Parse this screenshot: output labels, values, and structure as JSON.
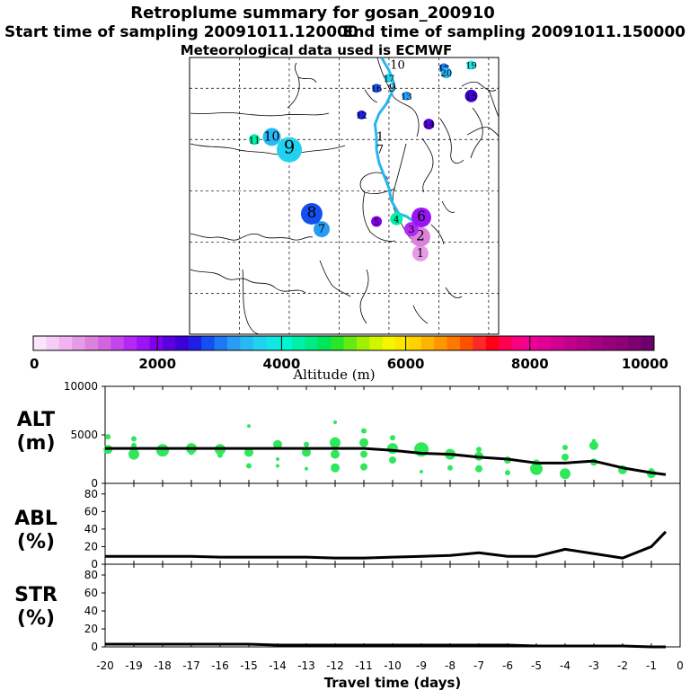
{
  "header": {
    "title": "Retroplume summary for gosan_200910",
    "start": "Start time of sampling 20091011.120000",
    "end": "End time of sampling 20091011.150000",
    "met": "Meteorological data used is ECMWF"
  },
  "colorbar": {
    "colors": [
      "#fae6fa",
      "#f5cdf5",
      "#f0b4f0",
      "#e69be6",
      "#dc82dc",
      "#d264e1",
      "#c346eb",
      "#b428f5",
      "#9b14f5",
      "#8200f0",
      "#5a00e1",
      "#3c00d7",
      "#1e1ee6",
      "#1450f0",
      "#1e78f5",
      "#289bf5",
      "#28b9f5",
      "#1ed2f0",
      "#14e6e6",
      "#00f5d2",
      "#00f0aa",
      "#00eb82",
      "#00e65a",
      "#28e628",
      "#64eb14",
      "#a0f000",
      "#d2f500",
      "#f5f500",
      "#fae600",
      "#ffd200",
      "#ffb400",
      "#ff9600",
      "#ff7800",
      "#ff5000",
      "#ff2828",
      "#ff0014",
      "#ff0050",
      "#fa0082",
      "#f00096",
      "#e10096",
      "#d20091",
      "#c3008c",
      "#b40087",
      "#a50082",
      "#96007d",
      "#8c0078",
      "#7d0073",
      "#6e006e"
    ],
    "ticks": [
      "0",
      "2000",
      "4000",
      "6000",
      "8000",
      "10000"
    ],
    "label": "Altitude (m)"
  },
  "map": {
    "points": [
      {
        "label": "1",
        "lon": 126.3,
        "lat": 27.8,
        "alt": 800,
        "size": 9
      },
      {
        "label": "2",
        "lon": 126.3,
        "lat": 31.0,
        "alt": 900,
        "size": 11
      },
      {
        "label": "3",
        "lon": 124.5,
        "lat": 32.5,
        "alt": 1500,
        "size": 8
      },
      {
        "label": "4",
        "lon": 121.5,
        "lat": 34.5,
        "alt": 4200,
        "size": 7
      },
      {
        "label": "5",
        "lon": 117.5,
        "lat": 34.0,
        "alt": 2000,
        "size": 6
      },
      {
        "label": "6",
        "lon": 126.5,
        "lat": 34.8,
        "alt": 1800,
        "size": 11
      },
      {
        "label": "7",
        "lon": 106.5,
        "lat": 32.5,
        "alt": 3300,
        "size": 9
      },
      {
        "label": "8",
        "lon": 104.5,
        "lat": 35.5,
        "alt": 2800,
        "size": 12
      },
      {
        "label": "9",
        "lon": 100.0,
        "lat": 48.0,
        "alt": 3700,
        "size": 14
      },
      {
        "label": "10",
        "lon": 96.5,
        "lat": 50.5,
        "alt": 3500,
        "size": 10
      },
      {
        "label": "11",
        "lon": 93.0,
        "lat": 50.0,
        "alt": 4300,
        "size": 6
      },
      {
        "label": "12",
        "lon": 114.5,
        "lat": 54.8,
        "alt": 2500,
        "size": 5
      },
      {
        "label": "13",
        "lon": 123.5,
        "lat": 58.5,
        "alt": 3300,
        "size": 5
      },
      {
        "label": "14",
        "lon": 128.0,
        "lat": 53.0,
        "alt": 2100,
        "size": 6
      },
      {
        "label": "15",
        "lon": 136.5,
        "lat": 58.5,
        "alt": 2400,
        "size": 7
      },
      {
        "label": "16",
        "lon": 117.5,
        "lat": 60.0,
        "alt": 2900,
        "size": 5
      },
      {
        "label": "17",
        "lon": 120.0,
        "lat": 62.0,
        "alt": 3600,
        "size": 5
      },
      {
        "label": "18",
        "lon": 131.0,
        "lat": 64.0,
        "alt": 3000,
        "size": 5
      },
      {
        "label": "19",
        "lon": 136.5,
        "lat": 64.5,
        "alt": 3800,
        "size": 5
      },
      {
        "label": "20",
        "lon": 131.5,
        "lat": 63.0,
        "alt": 3400,
        "size": 6
      }
    ],
    "traj": [
      {
        "lon": 126.3,
        "lat": 33.3
      },
      {
        "lon": 125.0,
        "lat": 34.0
      },
      {
        "lon": 123.5,
        "lat": 35.0
      },
      {
        "lon": 122.0,
        "lat": 35.5
      },
      {
        "lon": 120.5,
        "lat": 38.0
      },
      {
        "lon": 120.0,
        "lat": 40.5
      },
      {
        "lon": 119.0,
        "lat": 43.0
      },
      {
        "lon": 118.0,
        "lat": 45.5
      },
      {
        "lon": 117.5,
        "lat": 48.0
      },
      {
        "lon": 117.5,
        "lat": 50.5
      },
      {
        "lon": 117.2,
        "lat": 53.0
      },
      {
        "lon": 118.0,
        "lat": 55.0
      },
      {
        "lon": 119.5,
        "lat": 57.0
      },
      {
        "lon": 120.5,
        "lat": 59.0
      },
      {
        "lon": 121.0,
        "lat": 61.0
      },
      {
        "lon": 120.0,
        "lat": 63.5
      },
      {
        "lon": 118.5,
        "lat": 66.0
      }
    ],
    "traj_labels": [
      {
        "label": "1",
        "lon": 117.5,
        "lat": 50.5
      },
      {
        "label": "7",
        "lon": 117.5,
        "lat": 48.0
      },
      {
        "label": "9",
        "lon": 120.0,
        "lat": 60.0
      },
      {
        "label": "10",
        "lon": 121.0,
        "lat": 64.5
      }
    ]
  },
  "chart_data": [
    {
      "type": "line",
      "ylabel": "ALT (m)",
      "ylim": [
        0,
        10000
      ],
      "yticks": [
        "0",
        "5000",
        "10000"
      ],
      "x": [
        -20,
        -19,
        -18,
        -17,
        -16,
        -15,
        -14,
        -13,
        -12,
        -11,
        -10,
        -9,
        -8,
        -7,
        -6,
        -5,
        -4,
        -3,
        -2,
        -1,
        -0.5
      ],
      "values": [
        3600,
        3600,
        3600,
        3600,
        3600,
        3600,
        3600,
        3600,
        3600,
        3600,
        3400,
        3100,
        3000,
        2700,
        2500,
        2100,
        2100,
        2300,
        1600,
        1100,
        900
      ],
      "scatter": [
        {
          "x": -19.9,
          "y": 3500,
          "s": 5
        },
        {
          "x": -19.9,
          "y": 4800,
          "s": 3
        },
        {
          "x": -19,
          "y": 3000,
          "s": 6
        },
        {
          "x": -19,
          "y": 4600,
          "s": 3
        },
        {
          "x": -19,
          "y": 3900,
          "s": 3
        },
        {
          "x": -18,
          "y": 3400,
          "s": 7
        },
        {
          "x": -17,
          "y": 3600,
          "s": 6
        },
        {
          "x": -17,
          "y": 3200,
          "s": 3
        },
        {
          "x": -16,
          "y": 3500,
          "s": 6
        },
        {
          "x": -16,
          "y": 2900,
          "s": 3
        },
        {
          "x": -15,
          "y": 3200,
          "s": 5
        },
        {
          "x": -15,
          "y": 1800,
          "s": 3
        },
        {
          "x": -15,
          "y": 5900,
          "s": 2
        },
        {
          "x": -14,
          "y": 4000,
          "s": 5
        },
        {
          "x": -14,
          "y": 2500,
          "s": 2
        },
        {
          "x": -14,
          "y": 1800,
          "s": 2
        },
        {
          "x": -13,
          "y": 3200,
          "s": 5
        },
        {
          "x": -13,
          "y": 4000,
          "s": 3
        },
        {
          "x": -13,
          "y": 1500,
          "s": 2
        },
        {
          "x": -12,
          "y": 4200,
          "s": 6
        },
        {
          "x": -12,
          "y": 3000,
          "s": 5
        },
        {
          "x": -12,
          "y": 1600,
          "s": 5
        },
        {
          "x": -12,
          "y": 6300,
          "s": 2
        },
        {
          "x": -11,
          "y": 4200,
          "s": 5
        },
        {
          "x": -11,
          "y": 3000,
          "s": 4
        },
        {
          "x": -11,
          "y": 1700,
          "s": 4
        },
        {
          "x": -11,
          "y": 5400,
          "s": 3
        },
        {
          "x": -10,
          "y": 3600,
          "s": 6
        },
        {
          "x": -10,
          "y": 2400,
          "s": 4
        },
        {
          "x": -10,
          "y": 4700,
          "s": 3
        },
        {
          "x": -9,
          "y": 3500,
          "s": 8
        },
        {
          "x": -9,
          "y": 1200,
          "s": 2
        },
        {
          "x": -8,
          "y": 3000,
          "s": 6
        },
        {
          "x": -8,
          "y": 1600,
          "s": 3
        },
        {
          "x": -7,
          "y": 2800,
          "s": 5
        },
        {
          "x": -7,
          "y": 1500,
          "s": 4
        },
        {
          "x": -7,
          "y": 3500,
          "s": 3
        },
        {
          "x": -6,
          "y": 2400,
          "s": 4
        },
        {
          "x": -6,
          "y": 1100,
          "s": 3
        },
        {
          "x": -5,
          "y": 1500,
          "s": 7
        },
        {
          "x": -5,
          "y": 2100,
          "s": 4
        },
        {
          "x": -4,
          "y": 1000,
          "s": 6
        },
        {
          "x": -4,
          "y": 2700,
          "s": 4
        },
        {
          "x": -4,
          "y": 3700,
          "s": 3
        },
        {
          "x": -3,
          "y": 3900,
          "s": 5
        },
        {
          "x": -3,
          "y": 2200,
          "s": 4
        },
        {
          "x": -3,
          "y": 4400,
          "s": 2
        },
        {
          "x": -2,
          "y": 1400,
          "s": 5
        },
        {
          "x": -1,
          "y": 1000,
          "s": 5
        },
        {
          "x": -1,
          "y": 1300,
          "s": 3
        }
      ]
    },
    {
      "type": "line",
      "ylabel": "ABL (%)",
      "ylim": [
        0,
        90
      ],
      "yticks": [
        "0",
        "20",
        "40",
        "60",
        "80"
      ],
      "x": [
        -20,
        -19,
        -18,
        -17,
        -16,
        -15,
        -14,
        -13,
        -12,
        -11,
        -10,
        -9,
        -8,
        -7,
        -6,
        -5,
        -4,
        -3,
        -2,
        -1,
        -0.5
      ],
      "values": [
        9,
        9,
        9,
        9,
        8,
        8,
        8,
        8,
        7,
        7,
        8,
        9,
        10,
        13,
        9,
        9,
        17,
        12,
        7,
        20,
        37
      ]
    },
    {
      "type": "line",
      "ylabel": "STR (%)",
      "ylim": [
        0,
        90
      ],
      "yticks": [
        "0",
        "20",
        "40",
        "60",
        "80"
      ],
      "x": [
        -20,
        -19,
        -18,
        -17,
        -16,
        -15,
        -14,
        -13,
        -12,
        -11,
        -10,
        -9,
        -8,
        -7,
        -6,
        -5,
        -4,
        -3,
        -2,
        -1,
        -0.5
      ],
      "values": [
        3,
        3,
        3,
        3,
        3,
        3,
        2,
        2,
        2,
        2,
        2,
        2,
        2,
        2,
        2,
        1,
        1,
        1,
        1,
        0,
        0
      ]
    }
  ],
  "xaxis": {
    "ticks": [
      "-20",
      "-19",
      "-18",
      "-17",
      "-16",
      "-15",
      "-14",
      "-13",
      "-12",
      "-11",
      "-10",
      "-9",
      "-8",
      "-7",
      "-6",
      "-5",
      "-4",
      "-3",
      "-2",
      "-1",
      "0"
    ],
    "label": "Travel time (days)"
  },
  "labels": {
    "alt_top": "ALT",
    "alt_bottom": "(m)",
    "abl_top": "ABL",
    "abl_bottom": "(%)",
    "str_top": "STR",
    "str_bottom": "(%)"
  }
}
